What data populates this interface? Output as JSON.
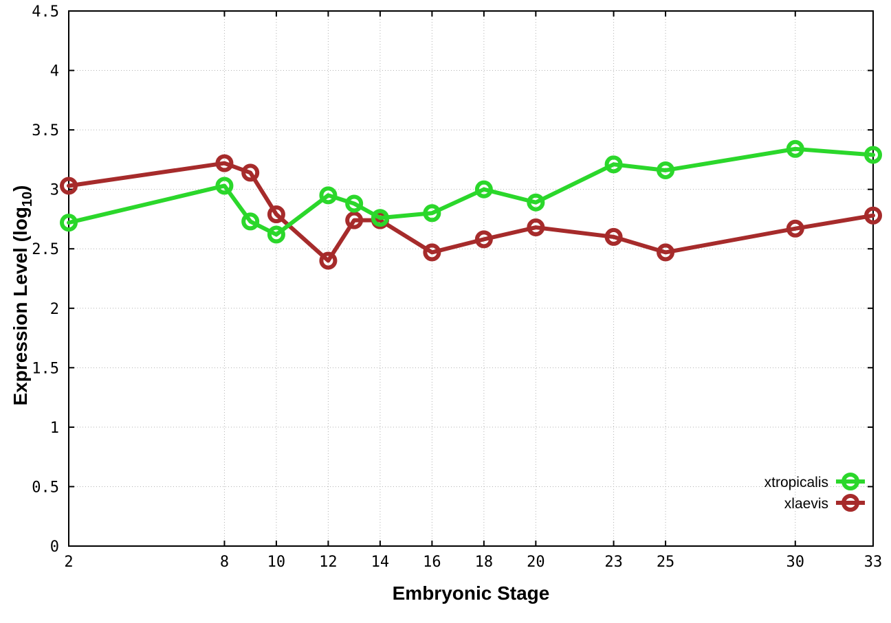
{
  "chart_data": {
    "type": "line",
    "title": "",
    "xlabel": "Embryonic Stage",
    "ylabel": "Expression Level (log10)",
    "ylabel_parts": {
      "prefix": "Expression Level (log",
      "sub": "10",
      "suffix": ")"
    },
    "x": [
      2,
      8,
      9,
      10,
      12,
      13,
      14,
      16,
      18,
      20,
      23,
      25,
      30,
      33
    ],
    "series": [
      {
        "name": "xtropicalis",
        "color": "#2bd72b",
        "values": [
          2.72,
          3.03,
          2.73,
          2.62,
          2.95,
          2.88,
          2.76,
          2.8,
          3.0,
          2.89,
          3.21,
          3.16,
          3.34,
          3.29
        ]
      },
      {
        "name": "xlaevis",
        "color": "#a62b2b",
        "values": [
          3.03,
          3.22,
          3.14,
          2.79,
          2.4,
          2.74,
          2.74,
          2.47,
          2.58,
          2.68,
          2.6,
          2.47,
          2.67,
          2.78
        ]
      }
    ],
    "xlim": [
      2,
      33
    ],
    "ylim": [
      0,
      4.5
    ],
    "xticks": [
      2,
      8,
      10,
      12,
      14,
      16,
      18,
      20,
      23,
      25,
      30,
      33
    ],
    "yticks": [
      0,
      0.5,
      1,
      1.5,
      2,
      2.5,
      3,
      3.5,
      4,
      4.5
    ],
    "ytick_labels": [
      "0",
      "0.5",
      "1",
      "1.5",
      "2",
      "2.5",
      "3",
      "3.5",
      "4",
      "4.5"
    ],
    "grid": true,
    "legend_position": "inside-bottom-right",
    "colors": {
      "grid": "#b0b0b0",
      "border": "#000000",
      "tick_label": "#000000",
      "background": "#ffffff"
    },
    "marker": "open-circle"
  }
}
